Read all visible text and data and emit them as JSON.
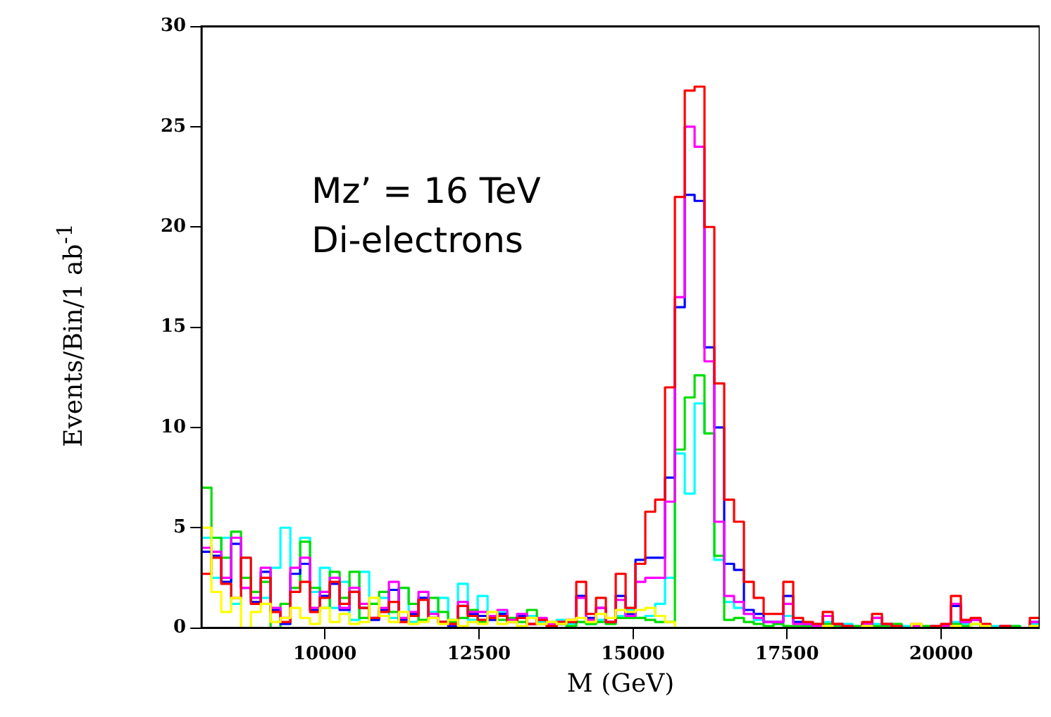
{
  "chart_data": {
    "type": "histogram",
    "xlabel": "M (GeV)",
    "ylabel": "Events/Bin/1 ab$^{-1}$",
    "annotations": [
      "Mz’ = 16 TeV",
      "Di-electrons"
    ],
    "bins": [
      8000,
      8160,
      8320,
      8480,
      8640,
      8800,
      8960,
      9120,
      9280,
      9440,
      9600,
      9760,
      9920,
      10080,
      10240,
      10400,
      10560,
      10720,
      10880,
      11040,
      11200,
      11360,
      11520,
      11680,
      11840,
      12000,
      12160,
      12320,
      12480,
      12640,
      12800,
      12960,
      13120,
      13280,
      13440,
      13600,
      13760,
      13920,
      14080,
      14240,
      14400,
      14560,
      14720,
      14880,
      15040,
      15200,
      15360,
      15520,
      15680,
      15840,
      16000,
      16160,
      16320,
      16480,
      16640,
      16800,
      16960,
      17120,
      17280,
      17440,
      17600,
      17760,
      17920,
      18080,
      18240,
      18400,
      18560,
      18720,
      18880,
      19040,
      19200,
      19360,
      19520,
      19680,
      19840,
      20000,
      20160,
      20320,
      20480,
      20640,
      20800,
      20960,
      21120,
      21280,
      21440,
      21600
    ],
    "series": [
      {
        "color": "#ffff00",
        "values": [
          5,
          1.8,
          0.8,
          1.5,
          0,
          0.8,
          1.2,
          0.3,
          0.5,
          1,
          0.5,
          0.2,
          1,
          0.3,
          0.7,
          0.2,
          0.3,
          1.5,
          0.6,
          0.3,
          0.8,
          0.2,
          0.3,
          0.5,
          0.2,
          0.4,
          0.1,
          0.3,
          0.2,
          0.8,
          0.2,
          0.3,
          0.1,
          0.5,
          0.2,
          0.3,
          0.2,
          0.4,
          0.5,
          0.3,
          0.7,
          0.5,
          0.9,
          0.8,
          0.9,
          1.0,
          0.6,
          0.3,
          0,
          0,
          0,
          0,
          0,
          0,
          0,
          0,
          0,
          0,
          0,
          0,
          0,
          0,
          0,
          0.1,
          0,
          0,
          0,
          0.1,
          0,
          0,
          0,
          0,
          0.2,
          0,
          0,
          0,
          0.1,
          0,
          0.2,
          0.1,
          0,
          0,
          0,
          0,
          0.1
        ]
      },
      {
        "color": "#ff0000",
        "values": [
          2.7,
          3.5,
          2.2,
          1.5,
          3.5,
          1.2,
          2.5,
          0.8,
          0.3,
          1.8,
          2.3,
          0.8,
          1.5,
          2.3,
          1.2,
          1.8,
          1,
          0.5,
          0.8,
          1.3,
          0.3,
          0.6,
          1.4,
          0.5,
          0.3,
          0.2,
          1.1,
          0.6,
          0.4,
          0.5,
          0.6,
          0.3,
          0.5,
          0.2,
          0.4,
          0.1,
          0.3,
          0.3,
          2.3,
          0.7,
          1.5,
          0.3,
          2.7,
          1.0,
          3.2,
          5.8,
          6.4,
          12,
          21.5,
          26.8,
          27,
          20,
          12.2,
          6.4,
          5.3,
          2.3,
          1.5,
          0.7,
          0.7,
          2.3,
          0.5,
          0.3,
          0.2,
          0.8,
          0.2,
          0.1,
          0,
          0.3,
          0.7,
          0.2,
          0.1,
          0,
          0.2,
          0,
          0.1,
          0.2,
          1.6,
          0.4,
          0.5,
          0.2,
          0,
          0.1,
          0,
          0,
          0.5
        ]
      },
      {
        "color": "#ff00ff",
        "values": [
          4,
          3.8,
          2.5,
          4.5,
          2,
          1.5,
          3,
          1,
          0.5,
          3,
          3.5,
          1,
          1.8,
          2.5,
          1,
          2,
          1.2,
          0.5,
          1,
          2.3,
          0.5,
          0.8,
          1.8,
          0.7,
          0.3,
          0.2,
          1.3,
          0.8,
          0.8,
          0.6,
          0.9,
          0.4,
          0.7,
          0.2,
          0.5,
          0.2,
          0.3,
          0.4,
          1.5,
          0.4,
          1.0,
          0.3,
          1.4,
          0.6,
          2.3,
          2.5,
          2.5,
          6.3,
          16.5,
          25,
          24,
          13.3,
          5.3,
          1.6,
          1.3,
          0.7,
          0.5,
          0.3,
          0.3,
          1.2,
          0.2,
          0.2,
          0.1,
          0.6,
          0.2,
          0.1,
          0,
          0.2,
          0.5,
          0.2,
          0,
          0,
          0.1,
          0,
          0.1,
          0.1,
          1.2,
          0.3,
          0.4,
          0.1,
          0,
          0.1,
          0,
          0,
          0.3
        ]
      },
      {
        "color": "#0000ff",
        "values": [
          3.8,
          3.6,
          2.3,
          4.2,
          2,
          1.3,
          2.8,
          0.9,
          0.2,
          2.7,
          3.2,
          0.9,
          1.6,
          2.2,
          0.9,
          1.8,
          1,
          0.4,
          0.9,
          1.9,
          0.4,
          0.7,
          1.5,
          0.5,
          0.3,
          0.1,
          1.1,
          0.7,
          0.6,
          0.4,
          0.7,
          0.3,
          0.6,
          0.2,
          0.4,
          0.1,
          0.2,
          0.3,
          1.6,
          0.5,
          1.0,
          0.3,
          1.6,
          0.7,
          3.4,
          3.5,
          3.5,
          7.5,
          16,
          21.6,
          21.3,
          14,
          10,
          3.2,
          2.9,
          0.9,
          0.7,
          0.3,
          0.3,
          1.6,
          0.3,
          0.2,
          0.1,
          0.6,
          0.2,
          0.1,
          0,
          0.2,
          0.5,
          0.2,
          0,
          0,
          0.1,
          0,
          0.1,
          0.1,
          1.1,
          0.3,
          0.4,
          0.1,
          0,
          0.1,
          0,
          0,
          0.3
        ]
      },
      {
        "color": "#00dd00",
        "values": [
          7,
          4.5,
          3.5,
          4.8,
          2.5,
          1.8,
          2.3,
          0,
          1.2,
          2,
          4.3,
          2,
          1,
          2.8,
          1.5,
          2.8,
          0.5,
          1.2,
          1.8,
          0.8,
          2,
          1.2,
          0.4,
          1.5,
          0.8,
          0.3,
          0.5,
          0.9,
          0.3,
          0.6,
          0.4,
          0.5,
          0.3,
          0.9,
          0.2,
          0.3,
          0.2,
          0.1,
          0.3,
          0.2,
          0.3,
          0.2,
          0.5,
          0.5,
          0.5,
          0.4,
          0.3,
          0.3,
          8.9,
          11.5,
          12.6,
          9.7,
          3.6,
          0.4,
          0.5,
          0.3,
          0.2,
          0.1,
          0.2,
          0.1,
          0.1,
          0.1,
          0.2,
          0.2,
          0.1,
          0.1,
          0.1,
          0.2,
          0.1,
          0.1,
          0.2,
          0,
          0.1,
          0.1,
          0,
          0.1,
          0.2,
          0.1,
          0.2,
          0.1,
          0,
          0,
          0.1,
          0,
          0.1
        ]
      },
      {
        "color": "#00ffff",
        "values": [
          4.5,
          2.5,
          4.5,
          1.2,
          3.5,
          1.5,
          1.5,
          3,
          5,
          2,
          4.5,
          1.8,
          3,
          1,
          2.3,
          0.4,
          2.8,
          1.2,
          1.5,
          0.5,
          2,
          0.3,
          1.5,
          0.8,
          1.5,
          0.4,
          2.2,
          0.4,
          1.6,
          0.6,
          0.8,
          0.3,
          0.5,
          0.6,
          0.3,
          0.2,
          0.4,
          0.2,
          0.3,
          0.2,
          0.4,
          0.3,
          0.6,
          0.9,
          0.5,
          0.6,
          1.2,
          2.5,
          8.7,
          6.7,
          11.2,
          9.7,
          3.4,
          1.3,
          1.0,
          0.7,
          0.4,
          0.3,
          0.2,
          0.6,
          0.3,
          0.2,
          0.2,
          0.3,
          0.1,
          0.2,
          0.1,
          0.2,
          0.2,
          0.1,
          0.1,
          0.1,
          0.1,
          0,
          0.1,
          0.1,
          0.3,
          0.2,
          0.2,
          0.1,
          0.1,
          0,
          0.1,
          0,
          0.2
        ]
      }
    ],
    "xlim": [
      8000,
      21600
    ],
    "xticks": [
      10000,
      12500,
      15000,
      17500,
      20000
    ],
    "ylim": [
      0,
      30
    ],
    "yticks": [
      0,
      5,
      10,
      15,
      20,
      25,
      30
    ]
  }
}
